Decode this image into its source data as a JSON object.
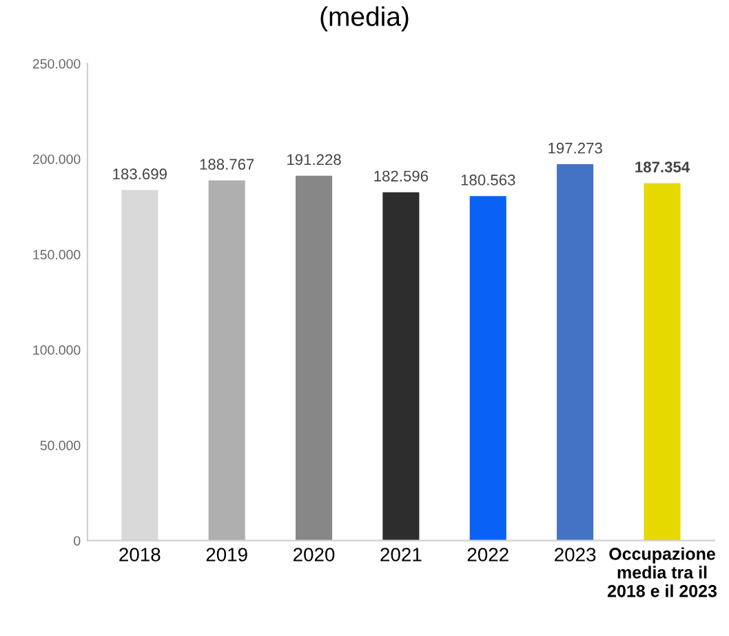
{
  "chart_data": {
    "type": "bar",
    "title": "(media)",
    "categories": [
      "2018",
      "2019",
      "2020",
      "2021",
      "2022",
      "2023",
      "Occupazione\nmedia tra il\n2018 e il 2023"
    ],
    "values": [
      183699,
      188767,
      191228,
      182596,
      180563,
      197273,
      187354
    ],
    "colors": [
      "#d9d9d9",
      "#afafaf",
      "#878787",
      "#2d2d2d",
      "#0a62f5",
      "#4472c4",
      "#e6d900"
    ],
    "value_labels": [
      "183.699",
      "188.767",
      "191.228",
      "182.596",
      "180.563",
      "197.273",
      "187.354"
    ],
    "ylim": [
      0,
      250000
    ],
    "yticks": [
      {
        "value": 0,
        "label": "0"
      },
      {
        "value": 50000,
        "label": "50.000"
      },
      {
        "value": 100000,
        "label": "100.000"
      },
      {
        "value": 150000,
        "label": "150.000"
      },
      {
        "value": 200000,
        "label": "200.000"
      },
      {
        "value": 250000,
        "label": "250.000"
      }
    ],
    "grid": false,
    "legend": false
  }
}
